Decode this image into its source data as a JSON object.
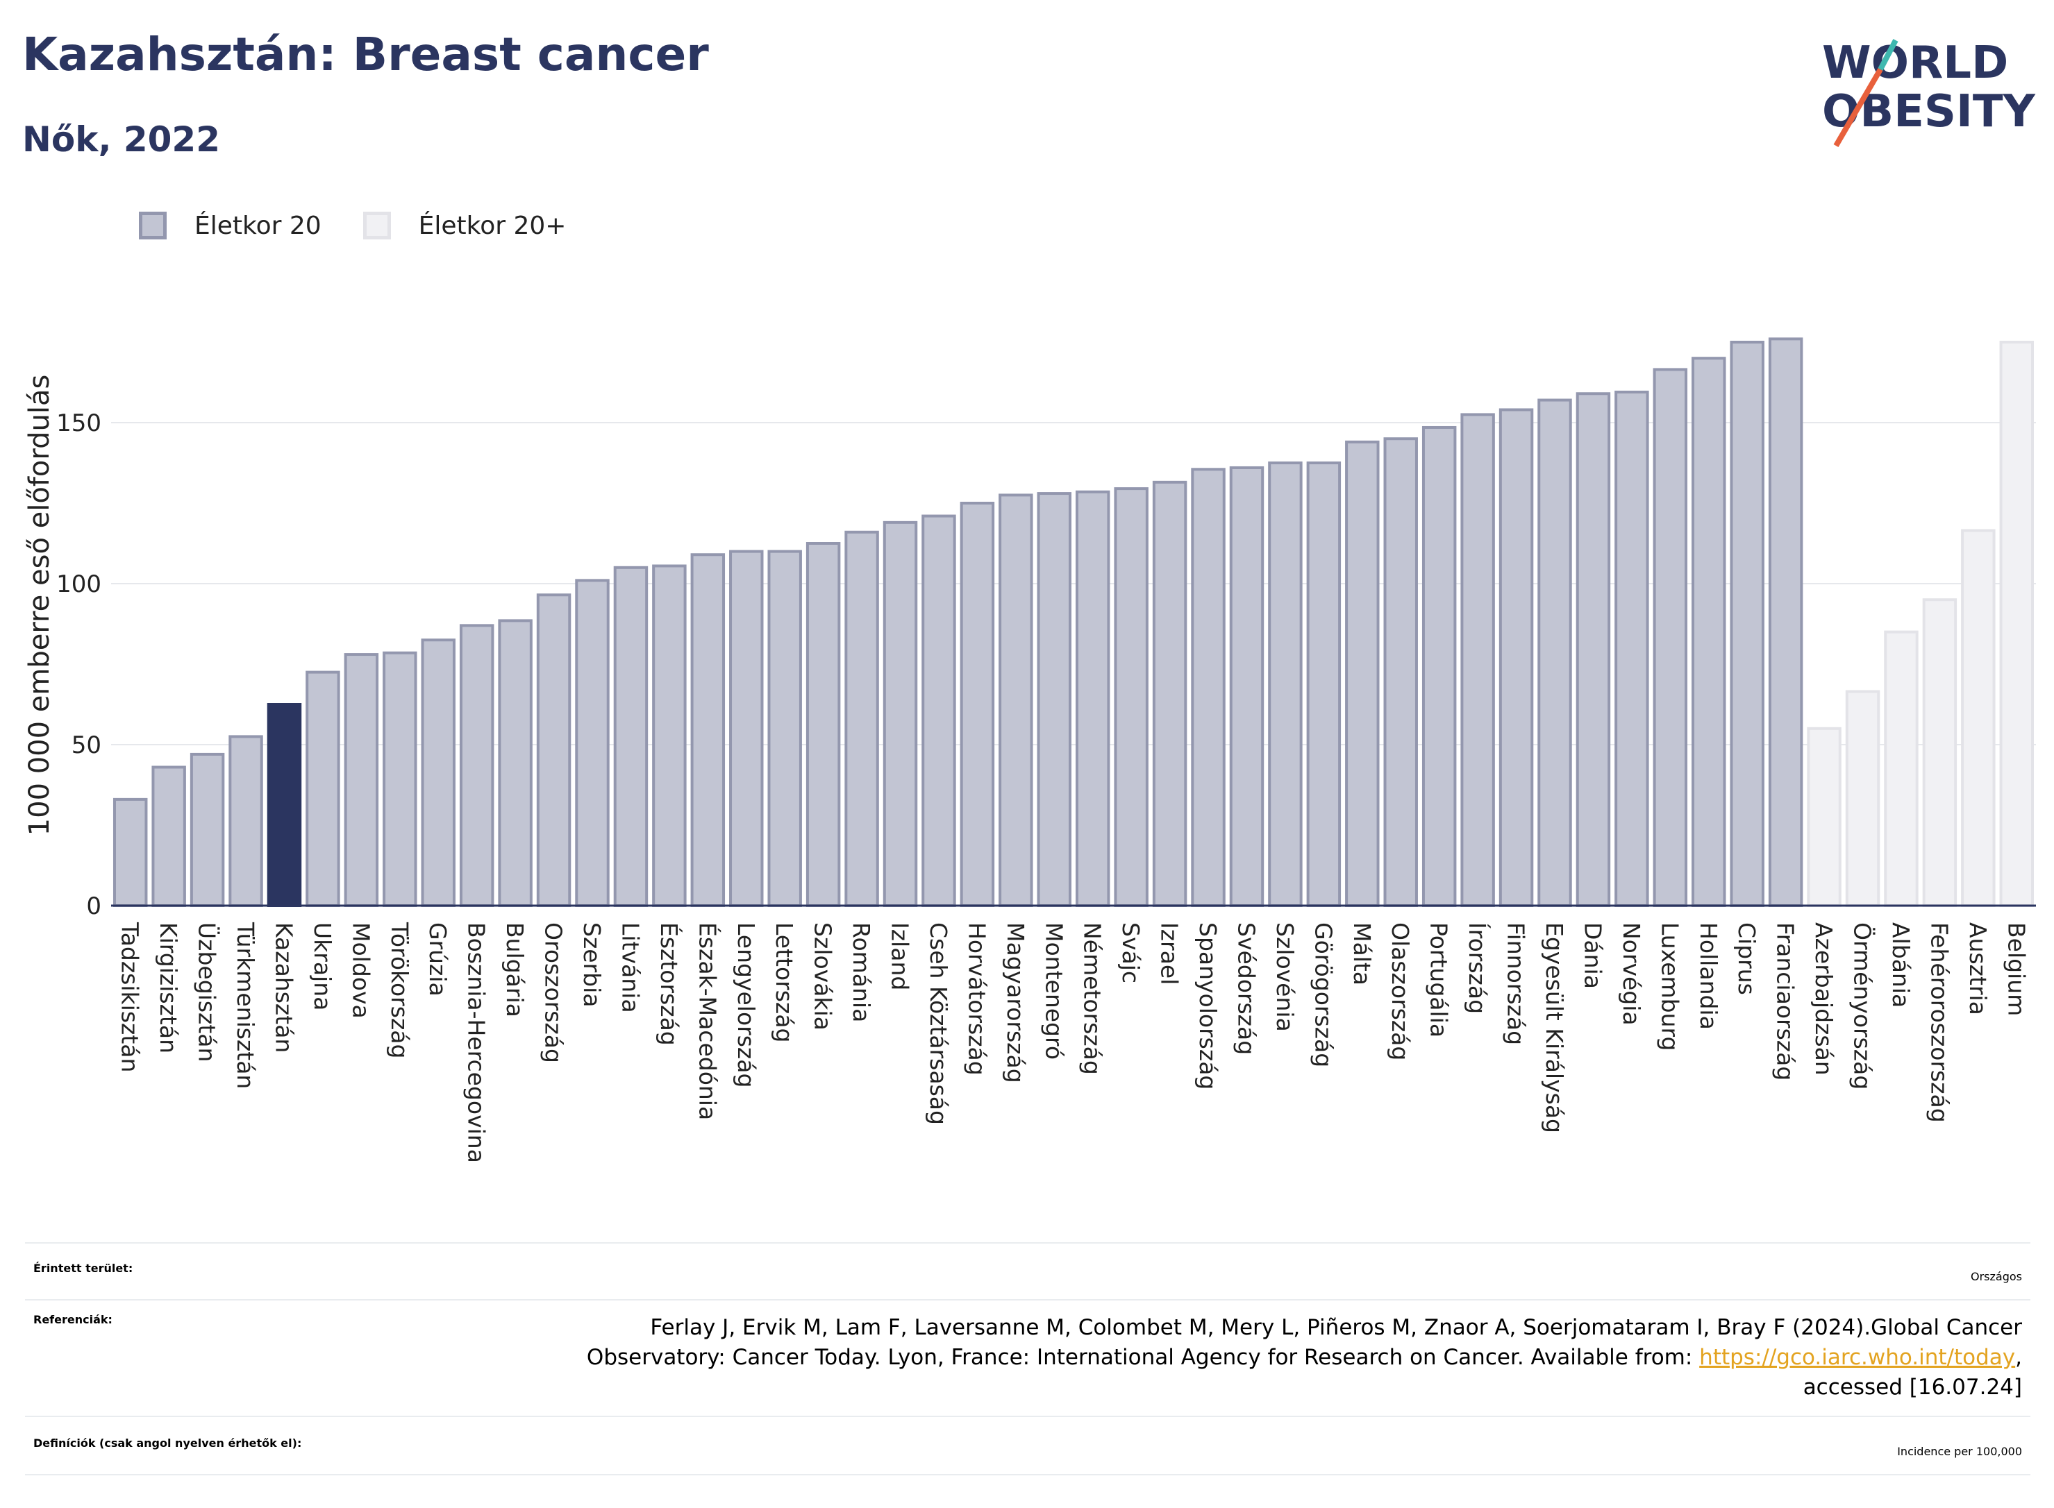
{
  "header": {
    "title": "Kazahsztán: Breast cancer",
    "subtitle": "Nők, 2022"
  },
  "logo": {
    "line1": "WORLD",
    "line2": "OBESITY"
  },
  "legend": {
    "items": [
      {
        "label": "Életkor 20",
        "color": "#c2c5d3"
      },
      {
        "label": "Életkor 20+",
        "color": "#f1f1f4"
      }
    ]
  },
  "colors": {
    "bar": "#c2c5d3",
    "bar_border": "#9397ae",
    "highlight": "#2b3560",
    "light_bar": "#f1f1f4",
    "light_border": "#e3e3e8",
    "title": "#2b3560",
    "link": "#e3a320"
  },
  "chart_data": {
    "type": "bar",
    "ylabel": "100 000 emberre eső előfordulás",
    "ylim": [
      0,
      185
    ],
    "yticks": [
      0,
      50,
      100,
      150
    ],
    "highlight": "Kazahsztán",
    "categories": [
      "Tadzsikisztán",
      "Kirgizisztán",
      "Üzbegisztán",
      "Türkmenisztán",
      "Kazahsztán",
      "Ukrajna",
      "Moldova",
      "Törökország",
      "Grúzia",
      "Bosznia-Hercegovina",
      "Bulgária",
      "Oroszország",
      "Szerbia",
      "Litvánia",
      "Észtország",
      "Észak-Macedónia",
      "Lengyelország",
      "Lettország",
      "Szlovákia",
      "Románia",
      "Izland",
      "Cseh Köztársaság",
      "Horvátország",
      "Magyarország",
      "Montenegró",
      "Németország",
      "Svájc",
      "Izrael",
      "Spanyolország",
      "Svédország",
      "Szlovénia",
      "Görögország",
      "Málta",
      "Olaszország",
      "Portugália",
      "Írország",
      "Finnország",
      "Egyesült Királyság",
      "Dánia",
      "Norvégia",
      "Luxemburg",
      "Hollandia",
      "Ciprus",
      "Franciaország",
      "Azerbajdzsán",
      "Örményország",
      "Albánia",
      "Fehéroroszország",
      "Ausztria",
      "Belgium"
    ],
    "values": [
      33,
      43,
      47,
      52.5,
      62.5,
      72.5,
      78,
      78.5,
      82.5,
      87,
      88.5,
      96.5,
      101,
      105,
      105.5,
      109,
      110,
      110,
      112.5,
      116,
      119,
      121,
      125,
      127.5,
      128,
      128.5,
      129.5,
      131.5,
      135.5,
      136,
      137.5,
      137.5,
      144,
      145,
      148.5,
      152.5,
      154,
      157,
      159,
      159.5,
      166.5,
      170,
      175,
      176,
      55,
      66.5,
      85,
      95,
      116.5,
      175
    ],
    "series_group": [
      "Életkor 20",
      "Életkor 20",
      "Életkor 20",
      "Életkor 20",
      "Életkor 20",
      "Életkor 20",
      "Életkor 20",
      "Életkor 20",
      "Életkor 20",
      "Életkor 20",
      "Életkor 20",
      "Életkor 20",
      "Életkor 20",
      "Életkor 20",
      "Életkor 20",
      "Életkor 20",
      "Életkor 20",
      "Életkor 20",
      "Életkor 20",
      "Életkor 20",
      "Életkor 20",
      "Életkor 20",
      "Életkor 20",
      "Életkor 20",
      "Életkor 20",
      "Életkor 20",
      "Életkor 20",
      "Életkor 20",
      "Életkor 20",
      "Életkor 20",
      "Életkor 20",
      "Életkor 20",
      "Életkor 20",
      "Életkor 20",
      "Életkor 20",
      "Életkor 20",
      "Életkor 20",
      "Életkor 20",
      "Életkor 20",
      "Életkor 20",
      "Életkor 20",
      "Életkor 20",
      "Életkor 20",
      "Életkor 20",
      "Életkor 20+",
      "Életkor 20+",
      "Életkor 20+",
      "Életkor 20+",
      "Életkor 20+",
      "Életkor 20+"
    ],
    "grid": true
  },
  "info": {
    "region_label": "Érintett terület:",
    "region_value": "Országos",
    "refs_label": "Referenciák:",
    "refs_line1": "Ferlay J, Ervik M, Lam F, Laversanne M, Colombet M, Mery L, Piñeros M, Znaor A, Soerjomataram I, Bray F (2024).Global Cancer",
    "refs_line2": "Observatory: Cancer Today. Lyon, France: International Agency for Research on Cancer. Available from: ",
    "refs_link": "https://gco.iarc.who.int/today",
    "refs_line2_end": ",",
    "refs_line3": "accessed [16.07.24]",
    "def_label": "Definíciók (csak angol nyelven érhetők el):",
    "def_value": "Incidence per 100,000"
  }
}
